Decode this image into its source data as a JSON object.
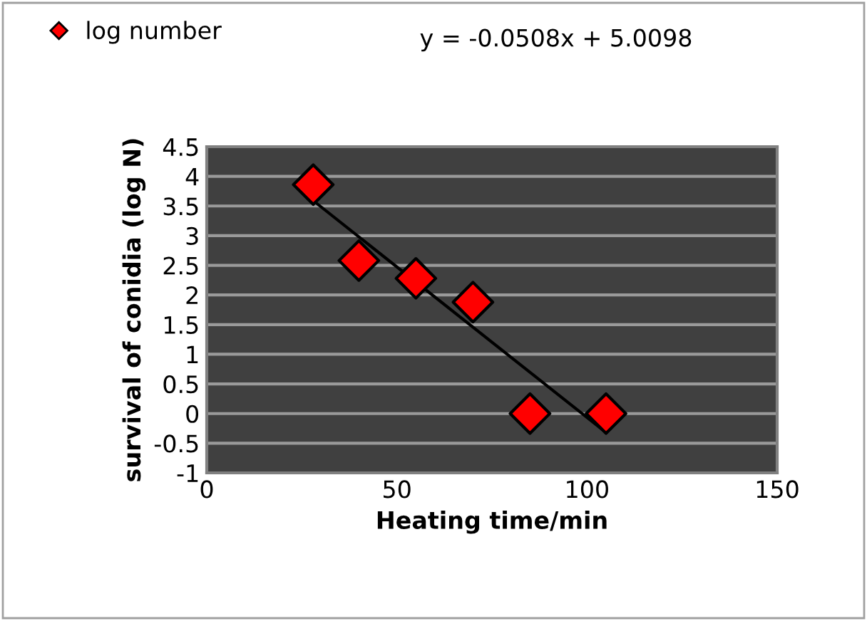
{
  "chart_data": {
    "type": "scatter",
    "xlabel": "Heating time/min",
    "ylabel": "survival of conidia (log N)",
    "series": [
      {
        "name": "log number",
        "color": "#ff0000",
        "marker": "diamond",
        "x": [
          28,
          40,
          55,
          70,
          85,
          105
        ],
        "values": [
          3.86,
          2.58,
          2.28,
          1.88,
          0,
          0
        ]
      },
      {
        "type": "line",
        "color": "#000000",
        "marker": "none",
        "x": [
          28,
          105
        ],
        "values": [
          3.59,
          -0.32
        ]
      }
    ],
    "annotations": [
      "y = -0.0508x + 5.0098"
    ],
    "xlim": [
      0,
      150
    ],
    "xticks": [
      0,
      50,
      100,
      150
    ],
    "ylim": [
      -1,
      4.5
    ],
    "yticks": [
      -1,
      -0.5,
      0,
      0.5,
      1,
      1.5,
      2,
      2.5,
      3,
      3.5,
      4,
      4.5
    ],
    "grid": "y",
    "legend": "top left"
  }
}
